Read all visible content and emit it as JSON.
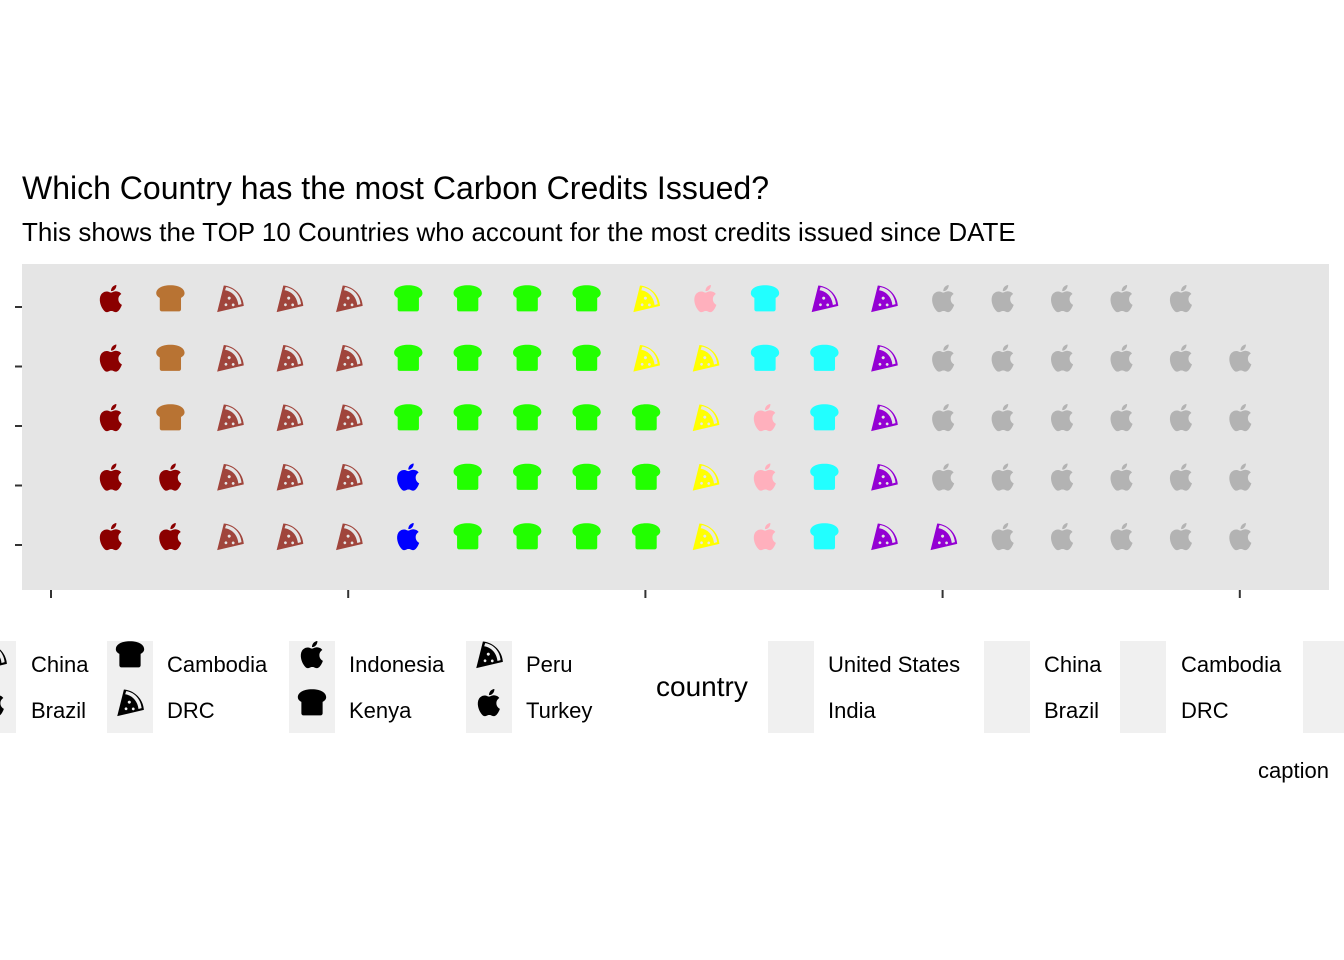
{
  "title": "Which Country has the most Carbon Credits Issued?",
  "subtitle": "This shows the TOP 10 Countries who account for the most credits issued since DATE",
  "caption": "caption",
  "legend": {
    "title": "country",
    "left_entries": [
      {
        "label": "China",
        "icon": "pizza-icon"
      },
      {
        "label": "Brazil",
        "icon": "apple-icon"
      },
      {
        "label": "Cambodia",
        "icon": "bread-icon"
      },
      {
        "label": "DRC",
        "icon": "pizza-icon"
      },
      {
        "label": "Indonesia",
        "icon": "apple-icon"
      },
      {
        "label": "Kenya",
        "icon": "bread-icon"
      },
      {
        "label": "Peru",
        "icon": "pizza-icon"
      },
      {
        "label": "Turkey",
        "icon": "apple-icon"
      }
    ],
    "right_entries": [
      {
        "label": "United States"
      },
      {
        "label": "India"
      },
      {
        "label": "China"
      },
      {
        "label": "Brazil"
      },
      {
        "label": "Cambodia"
      },
      {
        "label": "DRC"
      }
    ]
  },
  "chart_data": {
    "type": "waffle",
    "title": "Which Country has the most Carbon Credits Issued?",
    "subtitle": "This shows the TOP 10 Countries who account for the most credits issued since DATE",
    "rows": 5,
    "columns": 20,
    "icon_colors": {
      "darkred": "#8B0000",
      "brown": "#B87333",
      "sienna": "#A0453C",
      "green": "#22FF00",
      "blue": "#0000FF",
      "yellow": "#FFFF00",
      "pink": "#FFB0BD",
      "cyan": "#22FFFF",
      "purple": "#9400D3",
      "grey": "#B3B3B3"
    },
    "series": [
      {
        "name": "darkred apple",
        "icon": "apple",
        "color": "darkred",
        "cells": [
          [
            1,
            1
          ],
          [
            1,
            2
          ],
          [
            1,
            3
          ],
          [
            1,
            4
          ],
          [
            1,
            5
          ],
          [
            2,
            4
          ],
          [
            2,
            5
          ]
        ]
      },
      {
        "name": "brown bread",
        "icon": "bread",
        "color": "brown",
        "cells": [
          [
            2,
            1
          ],
          [
            2,
            2
          ],
          [
            2,
            3
          ]
        ]
      },
      {
        "name": "sienna pizza",
        "icon": "pizza",
        "color": "sienna",
        "cells": [
          [
            3,
            1
          ],
          [
            3,
            2
          ],
          [
            3,
            3
          ],
          [
            3,
            4
          ],
          [
            3,
            5
          ],
          [
            4,
            1
          ],
          [
            4,
            2
          ],
          [
            4,
            3
          ],
          [
            4,
            4
          ],
          [
            4,
            5
          ],
          [
            5,
            1
          ],
          [
            5,
            2
          ],
          [
            5,
            3
          ],
          [
            5,
            4
          ],
          [
            5,
            5
          ]
        ]
      },
      {
        "name": "green bread",
        "icon": "bread",
        "color": "green",
        "cells": [
          [
            6,
            1
          ],
          [
            6,
            2
          ],
          [
            6,
            3
          ],
          [
            7,
            1
          ],
          [
            7,
            2
          ],
          [
            7,
            3
          ],
          [
            7,
            4
          ],
          [
            7,
            5
          ],
          [
            8,
            1
          ],
          [
            8,
            2
          ],
          [
            8,
            3
          ],
          [
            8,
            4
          ],
          [
            8,
            5
          ],
          [
            9,
            1
          ],
          [
            9,
            2
          ],
          [
            9,
            3
          ],
          [
            9,
            4
          ],
          [
            9,
            5
          ],
          [
            10,
            3
          ],
          [
            10,
            4
          ],
          [
            10,
            5
          ]
        ]
      },
      {
        "name": "blue apple",
        "icon": "apple",
        "color": "blue",
        "cells": [
          [
            6,
            4
          ],
          [
            6,
            5
          ]
        ]
      },
      {
        "name": "yellow pizza",
        "icon": "pizza",
        "color": "yellow",
        "cells": [
          [
            10,
            1
          ],
          [
            10,
            2
          ],
          [
            11,
            2
          ],
          [
            11,
            3
          ],
          [
            11,
            4
          ],
          [
            11,
            5
          ]
        ]
      },
      {
        "name": "pink apple",
        "icon": "apple",
        "color": "pink",
        "cells": [
          [
            11,
            1
          ],
          [
            12,
            3
          ],
          [
            12,
            4
          ],
          [
            12,
            5
          ]
        ]
      },
      {
        "name": "cyan bread",
        "icon": "bread",
        "color": "cyan",
        "cells": [
          [
            12,
            1
          ],
          [
            12,
            2
          ],
          [
            13,
            2
          ],
          [
            13,
            3
          ],
          [
            13,
            4
          ],
          [
            13,
            5
          ]
        ]
      },
      {
        "name": "purple pizza",
        "icon": "pizza",
        "color": "purple",
        "cells": [
          [
            13,
            1
          ],
          [
            14,
            1
          ],
          [
            14,
            2
          ],
          [
            14,
            3
          ],
          [
            14,
            4
          ],
          [
            14,
            5
          ],
          [
            15,
            5
          ]
        ]
      },
      {
        "name": "grey apple",
        "icon": "apple",
        "color": "grey",
        "cells": [
          [
            15,
            1
          ],
          [
            15,
            2
          ],
          [
            15,
            3
          ],
          [
            15,
            4
          ],
          [
            16,
            1
          ],
          [
            16,
            2
          ],
          [
            16,
            3
          ],
          [
            16,
            4
          ],
          [
            16,
            5
          ],
          [
            17,
            1
          ],
          [
            17,
            2
          ],
          [
            17,
            3
          ],
          [
            17,
            4
          ],
          [
            17,
            5
          ],
          [
            18,
            1
          ],
          [
            18,
            2
          ],
          [
            18,
            3
          ],
          [
            18,
            4
          ],
          [
            18,
            5
          ],
          [
            19,
            1
          ],
          [
            19,
            2
          ],
          [
            19,
            3
          ],
          [
            19,
            4
          ],
          [
            19,
            5
          ],
          [
            20,
            2
          ],
          [
            20,
            3
          ],
          [
            20,
            4
          ],
          [
            20,
            5
          ]
        ]
      }
    ],
    "x_ticks": 5,
    "y_ticks": 5
  }
}
